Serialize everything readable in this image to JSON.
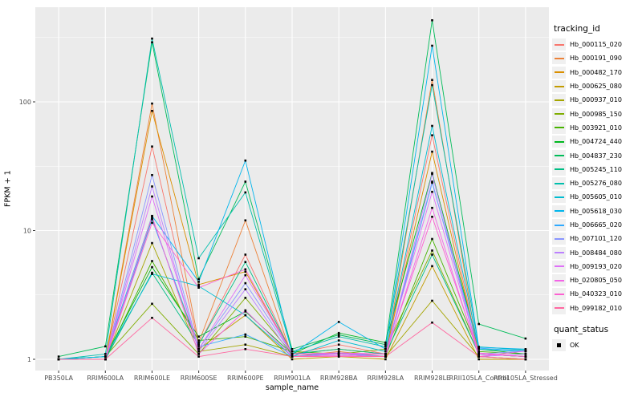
{
  "figure": {
    "background": "#FFFFFF",
    "panel_background": "#EBEBEB",
    "grid_color": "#FFFFFF",
    "tick_text_color": "#4D4D4D",
    "axis_text_color": "#000000",
    "point_color": "#000000"
  },
  "chart_data": {
    "type": "line",
    "title": "",
    "xlabel": "sample_name",
    "ylabel": "FPKM + 1",
    "y_scale": "log10",
    "grid": true,
    "legend_position": "right",
    "y_ticks": [
      1,
      10,
      100
    ],
    "y_minor_ticks": [
      3.1623,
      31.623,
      316.23
    ],
    "ylim": [
      0.82,
      520
    ],
    "point_shape": "square",
    "point_color": "#000000",
    "categories": [
      "PB350LA",
      "RRIM600LA",
      "RRIM600LE",
      "RRIM600SE",
      "RRIM600PE",
      "RRIM901LA",
      "RRIM928BA",
      "RRIM928LA",
      "RRIM928LE",
      "RRII105LA_Control",
      "RRII105LA_Stressed"
    ],
    "series": [
      {
        "name": "Hb_000115_020",
        "color": "#F8766D",
        "values": [
          1,
          1,
          45,
          1.3,
          6.5,
          1.1,
          1.3,
          1.1,
          55,
          1.1,
          1.05
        ]
      },
      {
        "name": "Hb_000191_090",
        "color": "#EC8239",
        "values": [
          1,
          1,
          97,
          1.35,
          12,
          1.05,
          1.15,
          1.05,
          148,
          1.05,
          1
        ]
      },
      {
        "name": "Hb_000482_170",
        "color": "#DA8F00",
        "values": [
          1,
          1,
          85,
          3.8,
          4.8,
          1.1,
          1.2,
          1.1,
          41,
          1.1,
          1.05
        ]
      },
      {
        "name": "Hb_000625_080",
        "color": "#C39B00",
        "values": [
          1,
          1,
          12.5,
          1.2,
          2.2,
          1,
          1.05,
          1,
          5.3,
          1,
          1
        ]
      },
      {
        "name": "Hb_000937_010",
        "color": "#A5A500",
        "values": [
          1,
          1,
          8,
          1.15,
          1.3,
          1.05,
          1.1,
          1.05,
          2.85,
          1.05,
          1
        ]
      },
      {
        "name": "Hb_000985_150",
        "color": "#7FAD00",
        "values": [
          1,
          1.05,
          2.7,
          1.1,
          3,
          1.1,
          1.1,
          1.2,
          7,
          1.1,
          1.05
        ]
      },
      {
        "name": "Hb_003921_010",
        "color": "#47B300",
        "values": [
          1,
          1,
          5.8,
          1.4,
          1.5,
          1.15,
          1.1,
          1.05,
          8.6,
          1.15,
          1.1
        ]
      },
      {
        "name": "Hb_004724_440",
        "color": "#00B81F",
        "values": [
          1,
          1.05,
          5.2,
          1.5,
          2.35,
          1.1,
          1.6,
          1.35,
          28,
          1.2,
          1.1
        ]
      },
      {
        "name": "Hb_004837_230",
        "color": "#00BC59",
        "values": [
          1.05,
          1.26,
          290,
          4.2,
          24,
          1.2,
          1.55,
          1.3,
          430,
          1.88,
          1.45
        ]
      },
      {
        "name": "Hb_005245_110",
        "color": "#00BE85",
        "values": [
          1,
          1,
          4.7,
          1.3,
          5.7,
          1.1,
          1.2,
          1.1,
          6.5,
          1.1,
          1.05
        ]
      },
      {
        "name": "Hb_005276_080",
        "color": "#00BFAD",
        "values": [
          1,
          1.1,
          310,
          6.1,
          19.8,
          1.15,
          1.5,
          1.25,
          135,
          1.25,
          1.18
        ]
      },
      {
        "name": "Hb_005605_010",
        "color": "#00BCD1",
        "values": [
          1,
          1.05,
          4.6,
          3.7,
          2.2,
          1.05,
          1.4,
          1.15,
          65,
          1.2,
          1.15
        ]
      },
      {
        "name": "Hb_005618_030",
        "color": "#00B5EC",
        "values": [
          1,
          1.05,
          13,
          4.0,
          35,
          1.1,
          1.95,
          1.2,
          273,
          1.24,
          1.2
        ]
      },
      {
        "name": "Hb_006665_020",
        "color": "#2FA9FF",
        "values": [
          1,
          1,
          12.2,
          1.25,
          1.56,
          1.05,
          1.12,
          1.05,
          23.5,
          1.22,
          1.16
        ]
      },
      {
        "name": "Hb_007101_120",
        "color": "#8A95FF",
        "values": [
          1,
          1,
          27,
          1.2,
          3.9,
          1.1,
          1.12,
          1.1,
          24,
          1.1,
          1.16
        ]
      },
      {
        "name": "Hb_008484_080",
        "color": "#BC81FF",
        "values": [
          1,
          1,
          22,
          1.15,
          3.5,
          1.05,
          1.1,
          1.05,
          27.5,
          1.05,
          1.1
        ]
      },
      {
        "name": "Hb_009193_020",
        "color": "#DF70F8",
        "values": [
          1,
          1,
          18.4,
          1.2,
          4.5,
          1.1,
          1.1,
          1.1,
          20,
          1.1,
          1.05
        ]
      },
      {
        "name": "Hb_020805_050",
        "color": "#F365E7",
        "values": [
          1,
          1,
          12.9,
          1.1,
          2.4,
          1.05,
          1.07,
          1.05,
          15,
          1.05,
          1.16
        ]
      },
      {
        "name": "Hb_040323_010",
        "color": "#FD61D1",
        "values": [
          1,
          1,
          11.5,
          3.6,
          5.0,
          1.1,
          1.12,
          1.1,
          12.8,
          1.12,
          1.05
        ]
      },
      {
        "name": "Hb_099182_010",
        "color": "#FF68A1",
        "values": [
          1,
          1,
          2.1,
          1.05,
          1.2,
          1.05,
          1.05,
          1.05,
          1.93,
          1.05,
          1
        ]
      }
    ]
  },
  "legend": {
    "title": "tracking_id"
  },
  "legend2": {
    "title": "quant_status",
    "items": [
      "OK"
    ]
  }
}
